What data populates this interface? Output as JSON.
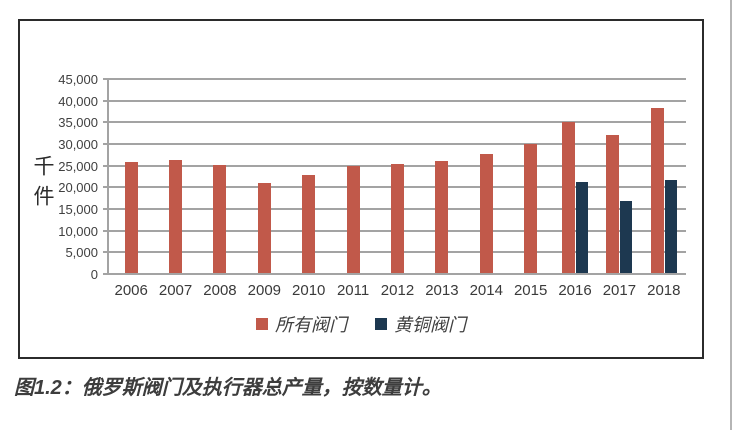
{
  "chart_data": {
    "type": "bar",
    "title": "",
    "categories": [
      "2006",
      "2007",
      "2008",
      "2009",
      "2010",
      "2011",
      "2012",
      "2013",
      "2014",
      "2015",
      "2016",
      "2017",
      "2018"
    ],
    "series": [
      {
        "name": "所有阀门",
        "color": "#c1594a",
        "values": [
          25800,
          26300,
          25100,
          21000,
          22900,
          25000,
          25400,
          26100,
          27800,
          29900,
          35000,
          32000,
          38400
        ]
      },
      {
        "name": "黄铜阀门",
        "color": "#1d3850",
        "values": [
          null,
          null,
          null,
          null,
          null,
          null,
          null,
          null,
          null,
          null,
          21300,
          16900,
          21700
        ]
      }
    ],
    "xlabel": "",
    "ylabel": "千件",
    "ylim": [
      0,
      45000
    ],
    "ytick_step": 5000,
    "ytick_labels": [
      "0",
      "5,000",
      "10,000",
      "15,000",
      "20,000",
      "25,000",
      "30,000",
      "35,000",
      "40,000",
      "45,000"
    ],
    "grid": true,
    "legend_position": "bottom-center"
  },
  "caption": "图1.2：俄罗斯阀门及执行器总产量，按数量计。",
  "colors": {
    "bar_all_valves": "#c1594a",
    "bar_brass_valves": "#1d3850",
    "gridline": "#a3a3a3",
    "axis": "#a3a3a3",
    "box_border": "#2b2b2b",
    "tick_text": "#404040",
    "caption_text": "#3d3d3d",
    "page_edge": "#b5b5b5"
  }
}
